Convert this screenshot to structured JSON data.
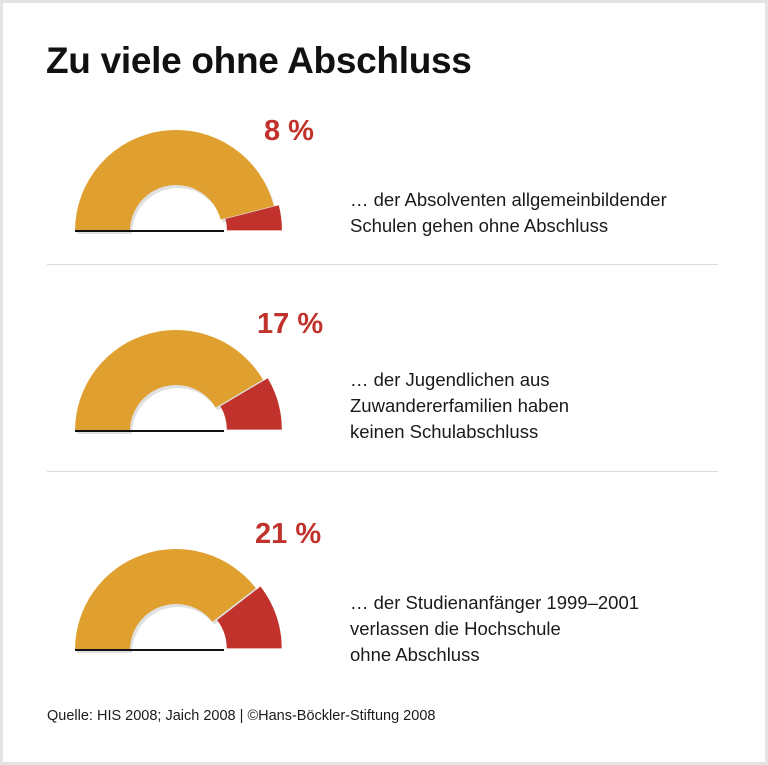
{
  "title": "Zu viele ohne Abschluss",
  "chart_data": {
    "type": "pie",
    "subtype": "semicircle-gauge",
    "colors": {
      "remainder": "#e0a030",
      "highlight": "#c0322b"
    },
    "gauges": [
      {
        "value": 8,
        "label": "8 %",
        "description": [
          "… der Absolventen allgemeinbildender",
          "Schulen gehen ohne Abschluss"
        ]
      },
      {
        "value": 17,
        "label": "17 %",
        "description": [
          "… der Jugendlichen aus",
          "Zuwandererfamilien haben",
          "keinen Schulabschluss"
        ]
      },
      {
        "value": 21,
        "label": "21 %",
        "description": [
          "… der Studienanfänger 1999–2001",
          "verlassen die Hochschule",
          "ohne Abschluss"
        ]
      }
    ]
  },
  "source": "Quelle: HIS 2008; Jaich 2008 | ©Hans-Böckler-Stiftung 2008"
}
